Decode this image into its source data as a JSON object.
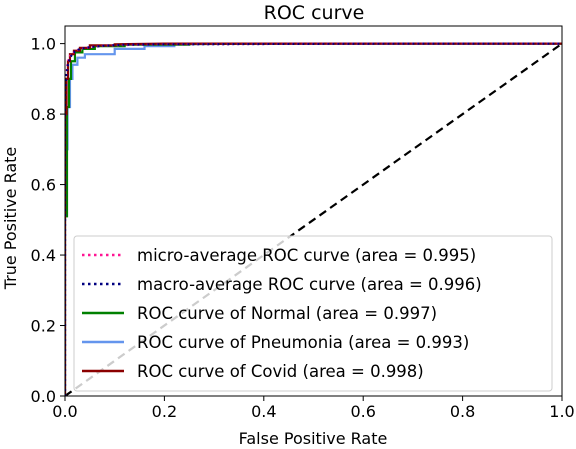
{
  "chart_data": {
    "type": "line",
    "title": "ROC curve",
    "xlabel": "False Positive Rate",
    "ylabel": "True Positive Rate",
    "xlim": [
      0.0,
      1.0
    ],
    "ylim": [
      0.0,
      1.05
    ],
    "x_ticks": [
      "0.0",
      "0.2",
      "0.4",
      "0.6",
      "0.8",
      "1.0"
    ],
    "y_ticks": [
      "0.0",
      "0.2",
      "0.4",
      "0.6",
      "0.8",
      "1.0"
    ],
    "legend_position": "lower-right",
    "grid": false,
    "series": [
      {
        "name": "micro-average ROC curve (area = 0.995)",
        "style": "dotted",
        "color": "#ff1493",
        "x": [
          0.0,
          0.0,
          0.002,
          0.004,
          0.006,
          0.01,
          0.015,
          0.02,
          0.03,
          0.05,
          0.08,
          0.12,
          0.2,
          0.4,
          0.7,
          1.0
        ],
        "y": [
          0.0,
          0.85,
          0.9,
          0.93,
          0.95,
          0.965,
          0.972,
          0.978,
          0.985,
          0.99,
          0.994,
          0.996,
          0.998,
          0.999,
          1.0,
          1.0
        ]
      },
      {
        "name": "macro-average ROC curve (area = 0.996)",
        "style": "dotted",
        "color": "#000080",
        "x": [
          0.0,
          0.0,
          0.003,
          0.006,
          0.01,
          0.015,
          0.02,
          0.03,
          0.05,
          0.08,
          0.12,
          0.2,
          0.4,
          0.7,
          1.0
        ],
        "y": [
          0.0,
          0.86,
          0.91,
          0.94,
          0.96,
          0.97,
          0.978,
          0.985,
          0.99,
          0.994,
          0.997,
          0.998,
          0.999,
          1.0,
          1.0
        ]
      },
      {
        "name": "ROC curve of Normal (area = 0.997)",
        "style": "solid",
        "color": "#008000",
        "x": [
          0.0,
          0.0,
          0.004,
          0.004,
          0.008,
          0.008,
          0.012,
          0.012,
          0.02,
          0.02,
          0.035,
          0.035,
          0.06,
          0.06,
          0.12,
          0.12,
          0.25,
          0.25,
          0.5,
          1.0
        ],
        "y": [
          0.0,
          0.51,
          0.51,
          0.82,
          0.82,
          0.9,
          0.9,
          0.95,
          0.95,
          0.975,
          0.975,
          0.985,
          0.985,
          0.993,
          0.993,
          0.997,
          0.997,
          0.999,
          1.0,
          1.0
        ]
      },
      {
        "name": "ROC curve of Pneumonia (area = 0.993)",
        "style": "solid",
        "color": "#6495ed",
        "x": [
          0.0,
          0.0,
          0.005,
          0.005,
          0.01,
          0.01,
          0.015,
          0.015,
          0.025,
          0.025,
          0.04,
          0.04,
          0.1,
          0.1,
          0.16,
          0.16,
          0.22,
          0.22,
          0.4,
          1.0
        ],
        "y": [
          0.0,
          0.7,
          0.7,
          0.82,
          0.82,
          0.9,
          0.9,
          0.94,
          0.94,
          0.96,
          0.96,
          0.97,
          0.97,
          0.985,
          0.985,
          0.993,
          0.993,
          0.998,
          1.0,
          1.0
        ]
      },
      {
        "name": "ROC curve of Covid (area = 0.998)",
        "style": "solid",
        "color": "#8b0000",
        "x": [
          0.0,
          0.0,
          0.003,
          0.003,
          0.006,
          0.006,
          0.01,
          0.01,
          0.018,
          0.018,
          0.03,
          0.03,
          0.05,
          0.05,
          0.1,
          0.1,
          0.2,
          1.0
        ],
        "y": [
          0.0,
          0.8,
          0.8,
          0.9,
          0.9,
          0.95,
          0.95,
          0.97,
          0.97,
          0.98,
          0.98,
          0.988,
          0.988,
          0.995,
          0.995,
          0.998,
          1.0,
          1.0
        ]
      },
      {
        "name": "",
        "style": "dashed",
        "color": "#000000",
        "x": [
          0.0,
          1.0
        ],
        "y": [
          0.0,
          1.0
        ]
      },
      {
        "name": "",
        "style": "dashed",
        "color": "#c0c0c0",
        "x": [
          0.0,
          0.2
        ],
        "y": [
          0.0,
          0.2
        ]
      }
    ]
  }
}
